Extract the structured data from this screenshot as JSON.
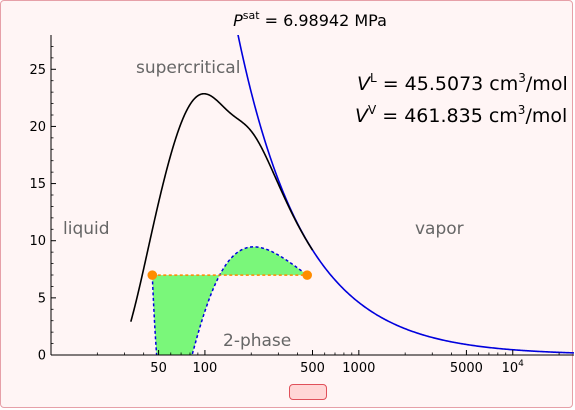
{
  "chart_data": {
    "type": "line",
    "title": {
      "symbol": "P",
      "superscript": "sat",
      "rest": " = 6.98942 MPa"
    },
    "annotations": {
      "vl": {
        "symbol": "V",
        "sup": "L",
        "value": " = 45.5073 cm",
        "unit_sup": "3",
        "unit_rest": "/mol"
      },
      "vv": {
        "symbol": "V",
        "sup": "V",
        "value": " = 461.835 cm",
        "unit_sup": "3",
        "unit_rest": "/mol"
      }
    },
    "region_labels": {
      "supercritical": "supercritical",
      "liquid": "liquid",
      "vapor": "vapor",
      "two_phase": "2-phase"
    },
    "x_scale": "log",
    "x_range": [
      10,
      25000
    ],
    "y_range": [
      0,
      28
    ],
    "x_ticks": [
      {
        "value": 50,
        "label": "50"
      },
      {
        "value": 100,
        "label": "100"
      },
      {
        "value": 500,
        "label": "500"
      },
      {
        "value": 1000,
        "label": "1000"
      },
      {
        "value": 5000,
        "label": "5000"
      },
      {
        "value": 10000,
        "label": "10",
        "sup": "4"
      }
    ],
    "y_ticks": [
      0,
      5,
      10,
      15,
      20,
      25
    ],
    "saturation_pressure": 6.98942,
    "v_liquid": 45.5073,
    "v_vapor": 461.835,
    "series": [
      {
        "color": "#0000dd",
        "style": "solid"
      },
      {
        "color": "#000000",
        "style": "solid"
      },
      {
        "color": "#0000dd",
        "style": "dashed"
      },
      {
        "color": "#ff8800",
        "style": "dashed"
      }
    ],
    "colors": {
      "fill": "#7af77a",
      "point": "#ff8c00",
      "tie_line": "#ff8800",
      "background": "#fff5f5",
      "frame_border": "#e6a0a8"
    },
    "grid": false
  },
  "controls": {
    "slider_color": "#ffd6d6"
  }
}
